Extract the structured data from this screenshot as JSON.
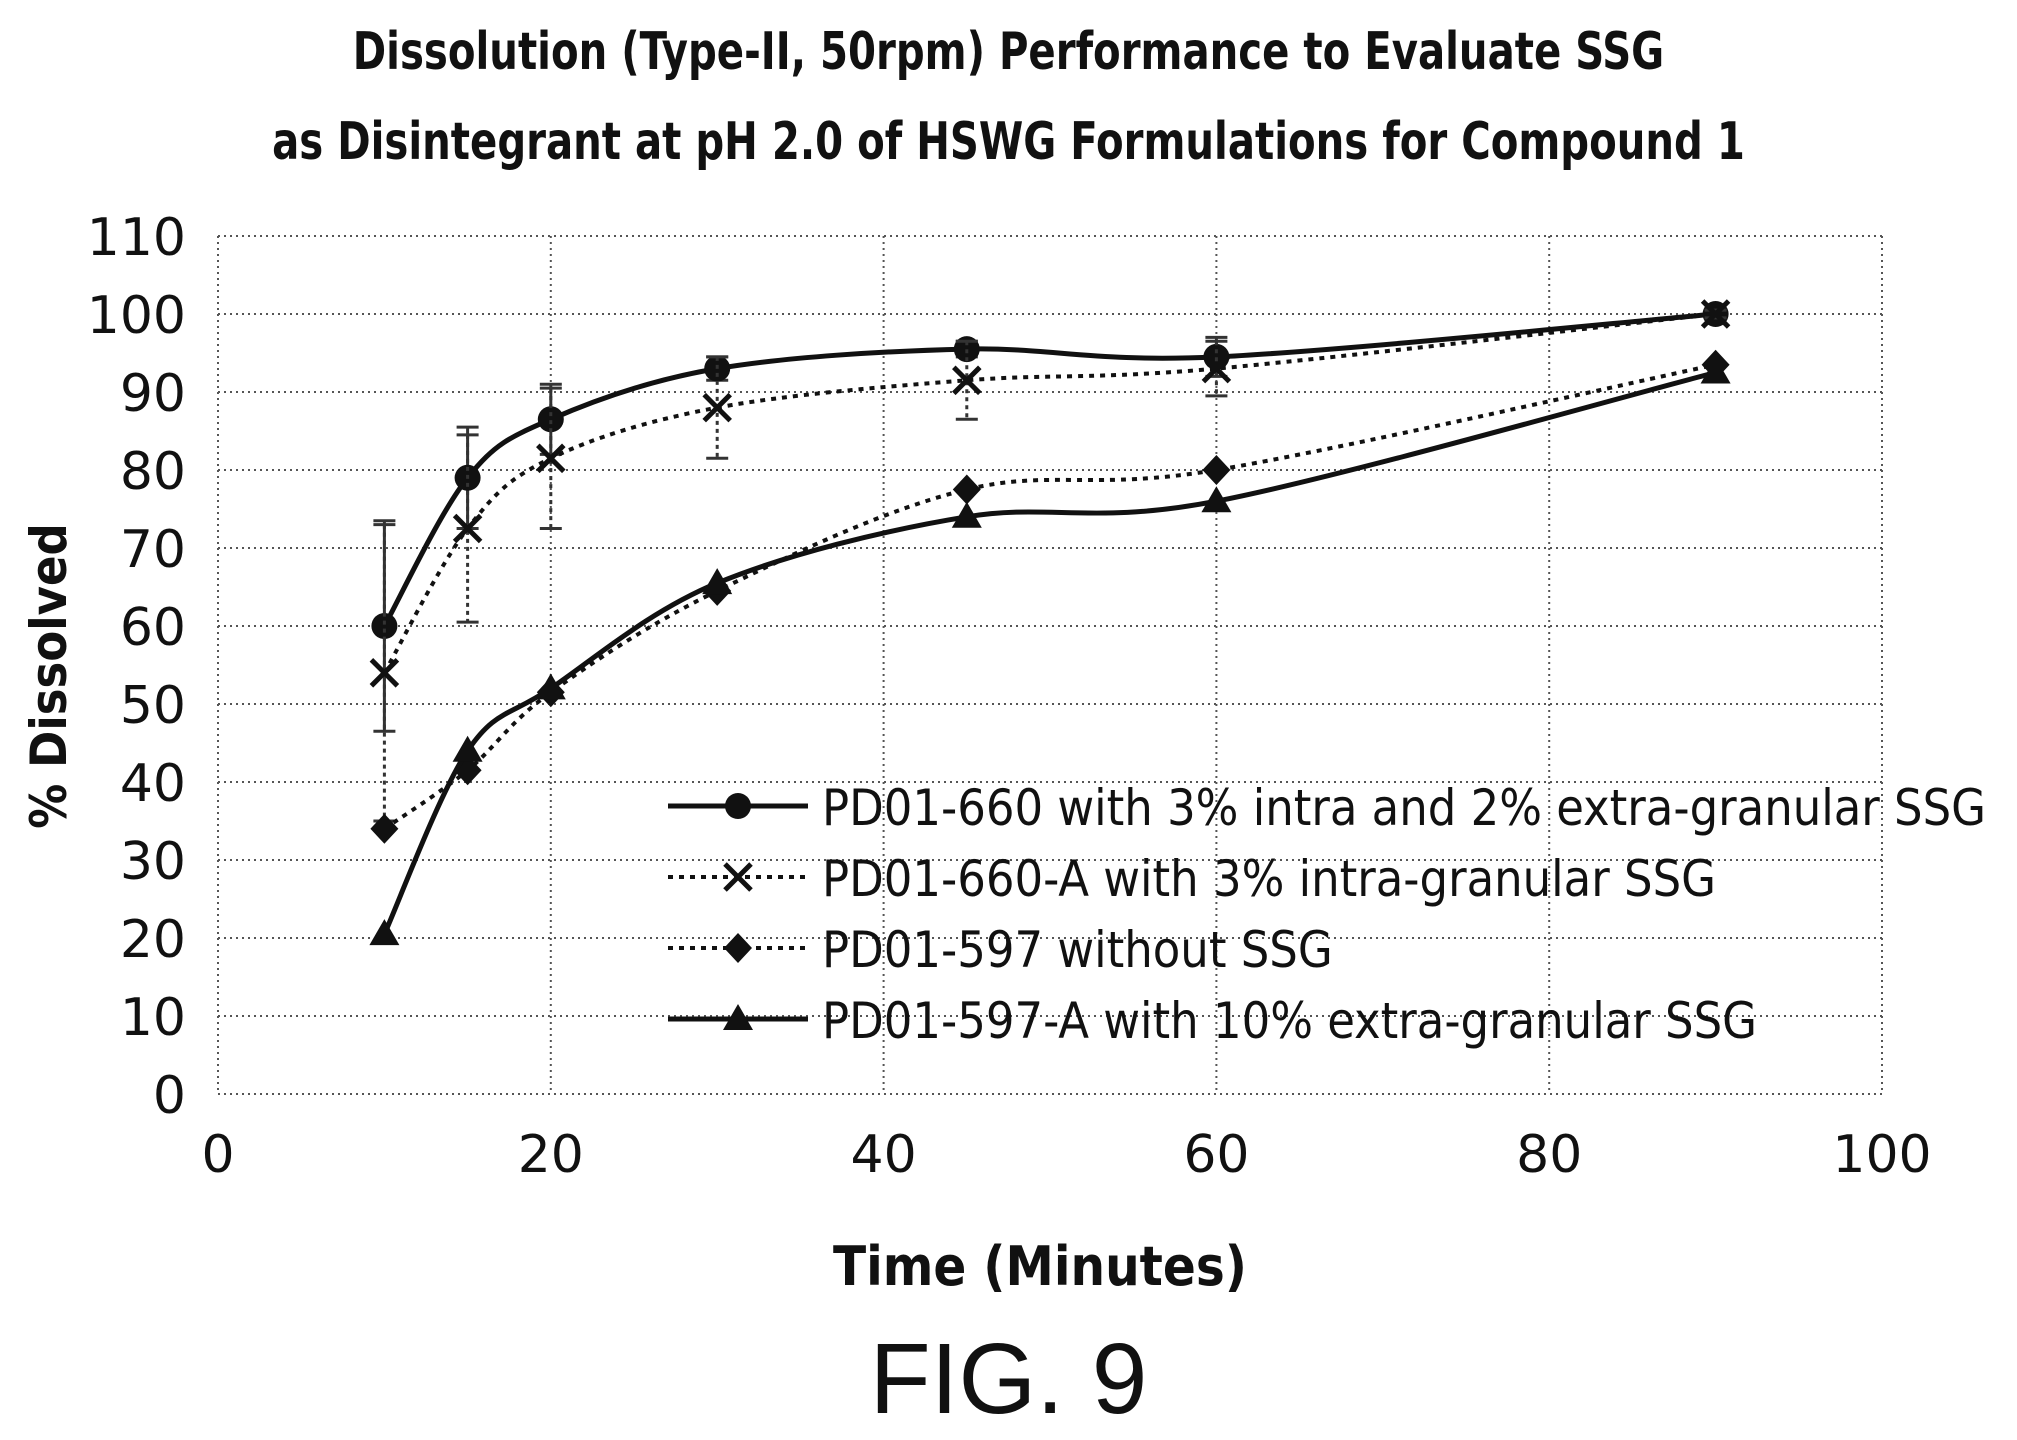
{
  "figure_label": "FIG. 9",
  "chart_data": {
    "type": "line",
    "title": "Dissolution (Type-II, 50rpm) Performance to Evaluate SSG",
    "subtitle": "as Disintegrant at pH 2.0 of HSWG Formulations for Compound 1",
    "xlabel": "Time (Minutes)",
    "ylabel": "% Dissolved",
    "xlim": [
      0,
      100
    ],
    "ylim": [
      0,
      110
    ],
    "xticks": [
      0,
      20,
      40,
      60,
      80,
      100
    ],
    "yticks": [
      0,
      10,
      20,
      30,
      40,
      50,
      60,
      70,
      80,
      90,
      100,
      110
    ],
    "grid": true,
    "legend_position": "bottom-right",
    "series": [
      {
        "name": "PD01-660 with 3% intra and 2% extra-granular SSG",
        "marker": "circle",
        "line": "solid",
        "x": [
          10,
          15,
          20,
          30,
          45,
          60,
          90
        ],
        "y": [
          60,
          79,
          86.5,
          93,
          95.5,
          94.5,
          100
        ],
        "error": [
          13.5,
          6.5,
          4.5,
          1.5,
          1,
          2.5,
          0.5
        ]
      },
      {
        "name": "PD01-660-A with 3% intra-granular SSG",
        "marker": "x",
        "line": "dotted",
        "x": [
          10,
          15,
          20,
          30,
          45,
          60,
          90
        ],
        "y": [
          54,
          72.5,
          81.5,
          88,
          91.5,
          93,
          100
        ],
        "error": [
          19,
          12,
          9,
          6.5,
          5,
          3.5,
          0.5
        ]
      },
      {
        "name": "PD01-597 without SSG",
        "marker": "diamond",
        "line": "dotted",
        "x": [
          10,
          15,
          20,
          30,
          45,
          60,
          90
        ],
        "y": [
          34,
          41.5,
          51.5,
          64.5,
          77.5,
          80,
          93.5
        ],
        "error": []
      },
      {
        "name": "PD01-597-A with 10% extra-granular SSG",
        "marker": "triangle",
        "line": "solid",
        "x": [
          10,
          15,
          20,
          30,
          45,
          60,
          90
        ],
        "y": [
          20.5,
          44,
          52,
          65.5,
          74,
          76,
          92.5
        ],
        "error": []
      }
    ]
  }
}
